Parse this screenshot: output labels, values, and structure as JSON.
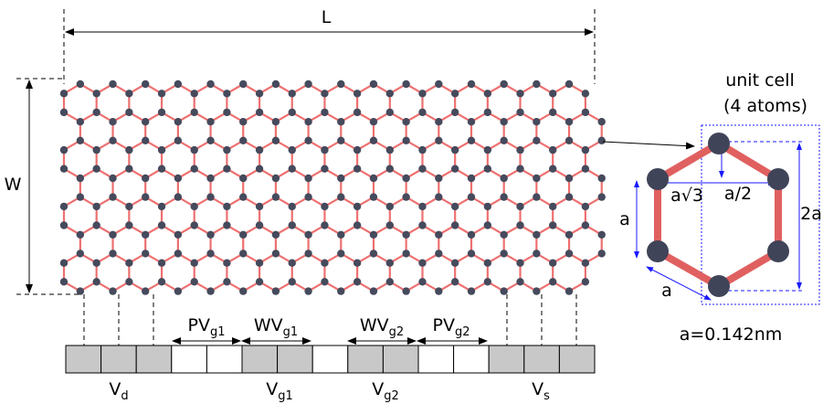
{
  "dimensions": {
    "length": "L",
    "width": "W"
  },
  "unit_cell": {
    "title": "unit cell",
    "atoms": "(4 atoms)",
    "half_height": "a/2",
    "span": "a√3",
    "side": "a",
    "height": "2a",
    "edge": "a",
    "lattice_constant": "a=0.142nm"
  },
  "gate_widths": [
    {
      "main": "PV",
      "sub": "g1"
    },
    {
      "main": "WV",
      "sub": "g1"
    },
    {
      "main": "WV",
      "sub": "g2"
    },
    {
      "main": "PV",
      "sub": "g2"
    }
  ],
  "electrodes": [
    {
      "main": "V",
      "sub": "d"
    },
    {
      "main": "V",
      "sub": "g1"
    },
    {
      "main": "V",
      "sub": "g2"
    },
    {
      "main": "V",
      "sub": "s"
    }
  ]
}
